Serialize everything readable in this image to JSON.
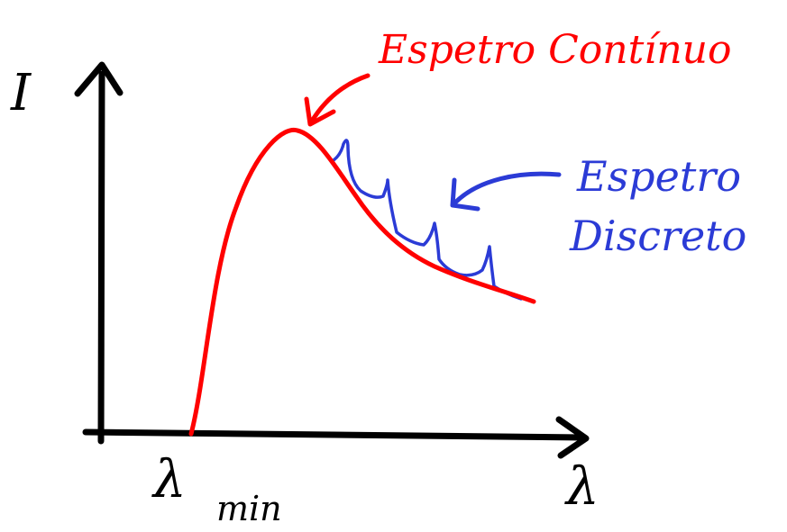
{
  "axes": {
    "y_label": "I",
    "x_label": "λ",
    "x_min_symbol": "λ",
    "x_min_subscript": "min"
  },
  "annotations": {
    "continuous": "Espetro Contínuo",
    "discrete_line1": "Espetro",
    "discrete_line2": "Discreto"
  },
  "colors": {
    "axis": "#000000",
    "continuous": "#ff0000",
    "discrete": "#2b3bd6"
  }
}
